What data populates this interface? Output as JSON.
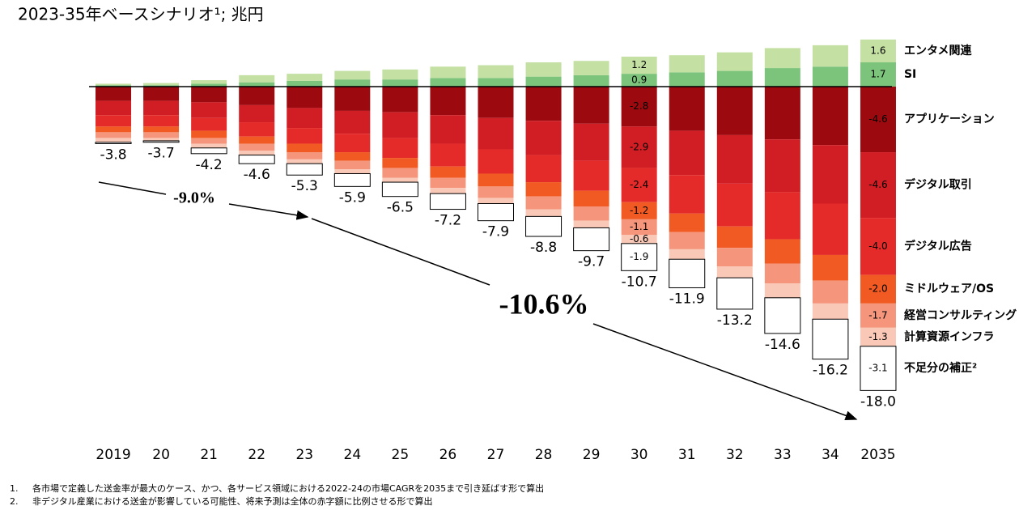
{
  "chart_data": {
    "type": "stacked-bar",
    "subtitle": "2023-35年ベースシナリオ¹; 兆円",
    "categories": [
      "2019",
      "20",
      "21",
      "22",
      "23",
      "24",
      "25",
      "26",
      "27",
      "28",
      "29",
      "30",
      "31",
      "32",
      "33",
      "34",
      "2035"
    ],
    "ylim": [
      -22.3,
      3.8
    ],
    "series": [
      {
        "name": "SI",
        "color": "#7cc47c",
        "values": [
          0.1,
          0.1,
          0.2,
          0.3,
          0.4,
          0.5,
          0.5,
          0.6,
          0.6,
          0.7,
          0.8,
          0.9,
          1.0,
          1.1,
          1.3,
          1.4,
          1.7
        ],
        "value_labels": [
          null,
          null,
          null,
          null,
          null,
          null,
          null,
          null,
          null,
          null,
          null,
          "0.9",
          null,
          null,
          null,
          null,
          "1.7"
        ]
      },
      {
        "name": "エンタメ関連",
        "color": "#c4e0a3",
        "values": [
          0.1,
          0.15,
          0.25,
          0.5,
          0.5,
          0.6,
          0.7,
          0.8,
          0.9,
          1.0,
          1.0,
          1.2,
          1.2,
          1.3,
          1.4,
          1.5,
          1.6
        ],
        "value_labels": [
          null,
          null,
          null,
          null,
          null,
          null,
          null,
          null,
          null,
          null,
          null,
          "1.2",
          null,
          null,
          null,
          null,
          "1.6"
        ]
      },
      {
        "name": "アプリケーション",
        "color": "#9c0a10",
        "values": [
          -1.0,
          -1.0,
          -1.1,
          -1.3,
          -1.5,
          -1.7,
          -1.8,
          -2.0,
          -2.2,
          -2.4,
          -2.6,
          -2.8,
          -3.1,
          -3.4,
          -3.7,
          -4.1,
          -4.6
        ],
        "value_labels": [
          null,
          null,
          null,
          null,
          null,
          null,
          null,
          null,
          null,
          null,
          null,
          "-2.8",
          null,
          null,
          null,
          null,
          "-4.6"
        ]
      },
      {
        "name": "デジタル取引",
        "color": "#d11d24",
        "values": [
          -1.0,
          -1.0,
          -1.1,
          -1.2,
          -1.4,
          -1.6,
          -1.8,
          -2.0,
          -2.2,
          -2.4,
          -2.6,
          -2.9,
          -3.1,
          -3.4,
          -3.7,
          -4.1,
          -4.6
        ],
        "value_labels": [
          null,
          null,
          null,
          null,
          null,
          null,
          null,
          null,
          null,
          null,
          null,
          "-2.9",
          null,
          null,
          null,
          null,
          "-4.6"
        ]
      },
      {
        "name": "デジタル広告",
        "color": "#e52b29",
        "values": [
          -0.8,
          -0.8,
          -0.9,
          -1.0,
          -1.1,
          -1.3,
          -1.4,
          -1.6,
          -1.7,
          -1.9,
          -2.1,
          -2.4,
          -2.7,
          -3.0,
          -3.3,
          -3.6,
          -4.0
        ],
        "value_labels": [
          null,
          null,
          null,
          null,
          null,
          null,
          null,
          null,
          null,
          null,
          null,
          "-2.4",
          null,
          null,
          null,
          null,
          "-4.0"
        ]
      },
      {
        "name": "ミドルウェア/OS",
        "color": "#f15a22",
        "values": [
          -0.4,
          -0.4,
          -0.5,
          -0.5,
          -0.6,
          -0.6,
          -0.7,
          -0.8,
          -0.9,
          -1.0,
          -1.1,
          -1.2,
          -1.3,
          -1.5,
          -1.7,
          -1.8,
          -2.0
        ],
        "value_labels": [
          null,
          null,
          null,
          null,
          null,
          null,
          null,
          null,
          null,
          null,
          null,
          "-1.2",
          null,
          null,
          null,
          null,
          "-2.0"
        ]
      },
      {
        "name": "経営コンサルティング",
        "color": "#f4957c",
        "values": [
          -0.4,
          -0.4,
          -0.4,
          -0.5,
          -0.5,
          -0.6,
          -0.7,
          -0.7,
          -0.8,
          -0.9,
          -1.0,
          -1.1,
          -1.2,
          -1.3,
          -1.4,
          -1.6,
          -1.7
        ],
        "value_labels": [
          null,
          null,
          null,
          null,
          null,
          null,
          null,
          null,
          null,
          null,
          null,
          "-1.1",
          null,
          null,
          null,
          null,
          "-1.7"
        ]
      },
      {
        "name": "計算資源インフラ",
        "color": "#f9c8b6",
        "values": [
          -0.3,
          -0.2,
          -0.3,
          -0.3,
          -0.3,
          -0.3,
          -0.3,
          -0.4,
          -0.4,
          -0.5,
          -0.5,
          -0.6,
          -0.7,
          -0.8,
          -1.0,
          -1.1,
          -1.3
        ],
        "value_labels": [
          null,
          null,
          null,
          null,
          null,
          null,
          null,
          null,
          null,
          null,
          null,
          "-0.6",
          null,
          null,
          null,
          null,
          "-1.3"
        ]
      },
      {
        "name": "不足分の補正²",
        "color": "#ffffff",
        "values": [
          -0.1,
          -0.1,
          -0.4,
          -0.6,
          -0.8,
          -0.9,
          -1.0,
          -1.1,
          -1.2,
          -1.4,
          -1.6,
          -1.9,
          -2.0,
          -2.2,
          -2.5,
          -2.8,
          -3.1
        ],
        "value_labels": [
          null,
          null,
          null,
          null,
          null,
          null,
          null,
          null,
          null,
          null,
          null,
          "-1.9",
          null,
          null,
          null,
          null,
          "-3.1"
        ]
      }
    ],
    "total_labels": [
      "-3.8",
      "-3.7",
      "-4.2",
      "-4.6",
      "-5.3",
      "-5.9",
      "-6.5",
      "-7.2",
      "-7.9",
      "-8.8",
      "-9.7",
      "-10.7",
      "-11.9",
      "-13.2",
      "-14.6",
      "-16.2",
      "-18.0"
    ],
    "annotations": [
      "-9.0%",
      "-10.6%"
    ],
    "footnotes": [
      {
        "number": "1.",
        "text": "各市場で定義した送金率が最大のケース、かつ、各サービス領域における2022-24の市場CAGRを2035まで引き延ばす形で算出"
      },
      {
        "number": "2.",
        "text": "非デジタル産業における送金が影響している可能性、将来予測は全体の赤字額に比例させる形で算出"
      }
    ]
  }
}
